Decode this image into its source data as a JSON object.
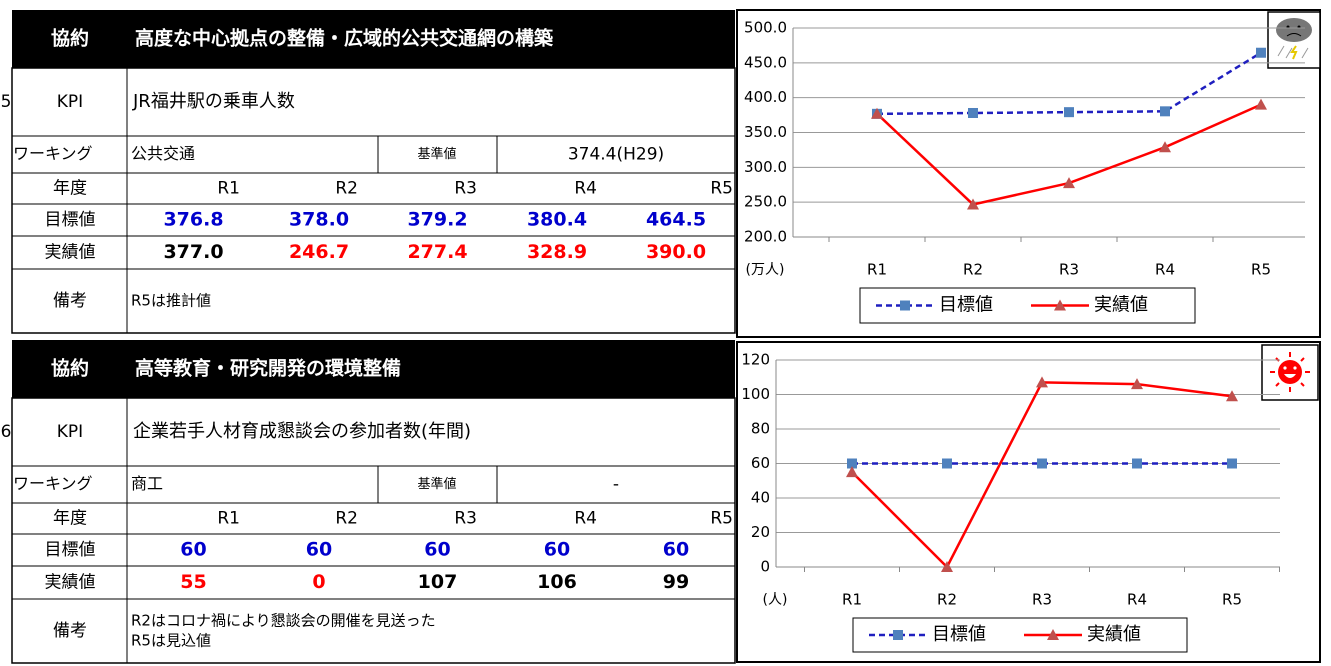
{
  "sections": [
    {
      "number": "5",
      "header": {
        "label": "協約",
        "title": "高度な中心拠点の整備・広域的公共交通網の構築"
      },
      "kpi": {
        "label": "KPI",
        "text": "JR福井駅の乗車人数"
      },
      "working": {
        "label": "ワーキング",
        "text": "公共交通",
        "baseline_label": "基準値",
        "baseline": "374.4(H29)"
      },
      "years": {
        "label": "年度",
        "values": [
          "R1",
          "R2",
          "R3",
          "R4",
          "R5"
        ]
      },
      "target": {
        "label": "目標値",
        "values": [
          "376.8",
          "378.0",
          "379.2",
          "380.4",
          "464.5"
        ],
        "color": "#0000cc"
      },
      "actual": {
        "label": "実績値",
        "values": [
          "377.0",
          "246.7",
          "277.4",
          "328.9",
          "390.0"
        ],
        "colors": [
          "#000000",
          "#ff0000",
          "#ff0000",
          "#ff0000",
          "#ff0000"
        ]
      },
      "notes": {
        "label": "備考",
        "lines": [
          "R5は推計値"
        ]
      }
    },
    {
      "number": "6",
      "header": {
        "label": "協約",
        "title": "高等教育・研究開発の環境整備"
      },
      "kpi": {
        "label": "KPI",
        "text": "企業若手人材育成懇談会の参加者数(年間)"
      },
      "working": {
        "label": "ワーキング",
        "text": "商工",
        "baseline_label": "基準値",
        "baseline": "-"
      },
      "years": {
        "label": "年度",
        "values": [
          "R1",
          "R2",
          "R3",
          "R4",
          "R5"
        ]
      },
      "target": {
        "label": "目標値",
        "values": [
          "60",
          "60",
          "60",
          "60",
          "60"
        ],
        "color": "#0000cc"
      },
      "actual": {
        "label": "実績値",
        "values": [
          "55",
          "0",
          "107",
          "106",
          "99"
        ],
        "colors": [
          "#ff0000",
          "#ff0000",
          "#000000",
          "#000000",
          "#000000"
        ]
      },
      "notes": {
        "label": "備考",
        "lines": [
          "R2はコロナ禍により懇談会の開催を見送った",
          "R5は見込値"
        ]
      }
    }
  ],
  "chart_data": [
    {
      "type": "line",
      "unit_label": "(万人)",
      "categories": [
        "R1",
        "R2",
        "R3",
        "R4",
        "R5"
      ],
      "ylim": [
        200,
        500
      ],
      "yticks": [
        {
          "value": 200,
          "label": "200.0"
        },
        {
          "value": 250,
          "label": "250.0"
        },
        {
          "value": 300,
          "label": "300.0"
        },
        {
          "value": 350,
          "label": "350.0"
        },
        {
          "value": 400,
          "label": "400.0"
        },
        {
          "value": 450,
          "label": "450.0"
        },
        {
          "value": 500,
          "label": "500.0"
        }
      ],
      "grid": true,
      "series": [
        {
          "name": "目標値",
          "color": "#1f1fbf",
          "dashed": true,
          "marker": "square",
          "values": [
            376.8,
            378.0,
            379.2,
            380.4,
            464.5
          ]
        },
        {
          "name": "実績値",
          "color": "#ff0000",
          "dashed": false,
          "marker": "triangle",
          "values": [
            377.0,
            246.7,
            277.4,
            328.9,
            390.0
          ]
        }
      ]
    },
    {
      "type": "line",
      "unit_label": "(人)",
      "categories": [
        "R1",
        "R2",
        "R3",
        "R4",
        "R5"
      ],
      "ylim": [
        0,
        120
      ],
      "yticks": [
        0,
        20,
        40,
        60,
        80,
        100,
        120
      ],
      "grid": true,
      "series": [
        {
          "name": "目標値",
          "color": "#1f1fbf",
          "dashed": true,
          "marker": "square",
          "values": [
            60,
            60,
            60,
            60,
            60
          ]
        },
        {
          "name": "実績値",
          "color": "#ff0000",
          "dashed": false,
          "marker": "triangle",
          "values": [
            55,
            0,
            107,
            106,
            99
          ]
        }
      ]
    }
  ]
}
